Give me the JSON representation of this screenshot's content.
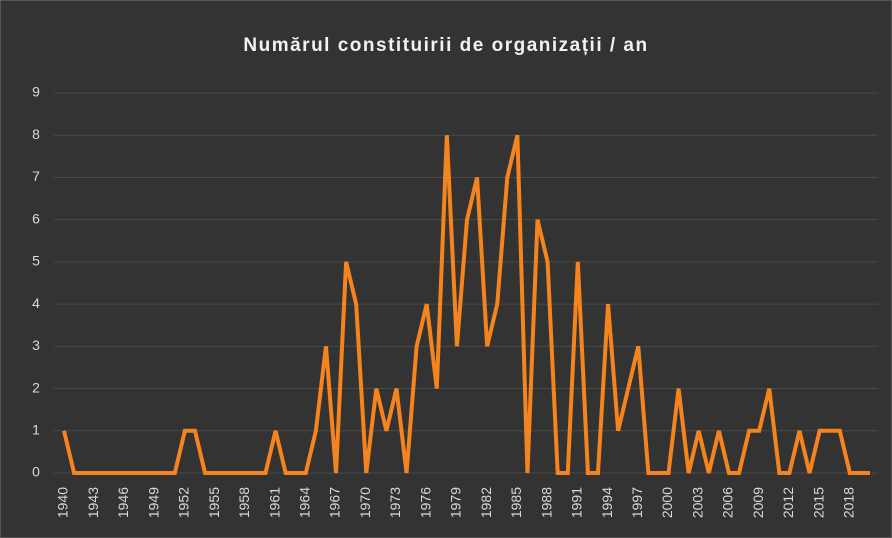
{
  "chart_data": {
    "type": "line",
    "title": "Numărul constituirii de organizații / an",
    "categories": [
      "1940",
      null,
      null,
      "1943",
      null,
      null,
      "1946",
      null,
      null,
      "1949",
      null,
      null,
      "1952",
      null,
      null,
      "1955",
      null,
      null,
      "1958",
      null,
      null,
      "1961",
      null,
      null,
      "1964",
      null,
      null,
      "1967",
      null,
      null,
      "1970",
      null,
      null,
      "1973",
      null,
      null,
      "1976",
      null,
      null,
      "1979",
      null,
      null,
      "1982",
      null,
      null,
      "1985",
      null,
      null,
      "1988",
      null,
      null,
      "1991",
      null,
      null,
      "1994",
      null,
      null,
      "1997",
      null,
      null,
      "2000",
      null,
      null,
      "2003",
      null,
      null,
      "2006",
      null,
      null,
      "2009",
      null,
      null,
      "2012",
      null,
      null,
      "2015",
      null,
      null,
      "2018",
      null,
      null
    ],
    "values": [
      1,
      0,
      0,
      0,
      0,
      0,
      0,
      0,
      0,
      0,
      0,
      0,
      1,
      1,
      0,
      0,
      0,
      0,
      0,
      0,
      0,
      1,
      0,
      0,
      0,
      1,
      3,
      0,
      5,
      4,
      0,
      2,
      1,
      2,
      0,
      3,
      4,
      2,
      8,
      3,
      6,
      7,
      3,
      4,
      7,
      8,
      0,
      6,
      5,
      0,
      0,
      5,
      0,
      0,
      4,
      1,
      2,
      3,
      0,
      0,
      0,
      2,
      0,
      1,
      0,
      1,
      0,
      0,
      1,
      1,
      2,
      0,
      0,
      1,
      0,
      1,
      1,
      1,
      0,
      0,
      0
    ],
    "color": "#f5841f",
    "ylim": [
      0,
      9
    ],
    "yticks": [
      0,
      1,
      2,
      3,
      4,
      5,
      6,
      7,
      8,
      9
    ],
    "grid": true
  }
}
